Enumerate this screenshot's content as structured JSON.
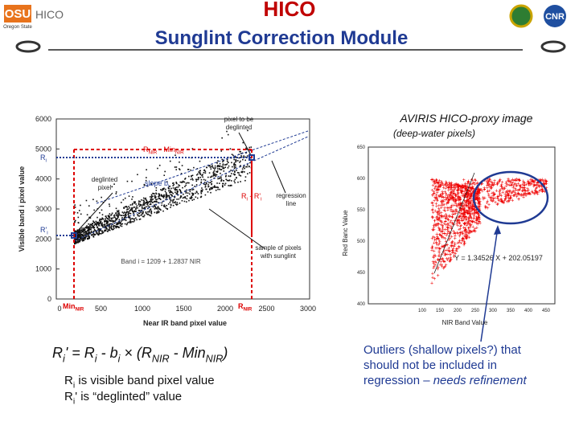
{
  "header": {
    "logo_left": "OSU",
    "logo_left_sub": "Oregon State",
    "logo_text": "HICO",
    "title": "HICO",
    "subtitle": "Sunglint Correction Module",
    "logo_right": "CNR"
  },
  "left_plot": {
    "y_label": "Visible band i pixel value",
    "x_label": "Near IR band pixel value",
    "yticks": [
      "0",
      "1000",
      "2000",
      "3000",
      "4000",
      "5000",
      "6000"
    ],
    "xticks": [
      "0",
      "500",
      "1000",
      "1500",
      "2000",
      "2500",
      "3000"
    ],
    "pixel_label": [
      "pixel to be",
      "deglinted"
    ],
    "deglinted_label": [
      "deglinted",
      "pixel"
    ],
    "regression_label": [
      "regression",
      "line"
    ],
    "sample_label": [
      "sample of pixels",
      "with sunglint"
    ],
    "equation": "Band i = 1209 + 1.2837 NIR",
    "rnir_min": [
      {
        "text": "R"
      },
      {
        "text": "NIR",
        "sub": true
      },
      {
        "text": " - Min"
      },
      {
        "text": "NIR",
        "sub": true
      }
    ],
    "ri": [
      {
        "text": "R"
      },
      {
        "text": "i",
        "sub": true
      }
    ],
    "ri_prime": [
      {
        "text": "R'"
      },
      {
        "text": "i",
        "sub": true
      }
    ],
    "slope": [
      {
        "text": "slope b"
      },
      {
        "text": "i",
        "sub": true
      }
    ],
    "ri_diff": [
      {
        "text": "R"
      },
      {
        "text": "i",
        "sub": true
      },
      {
        "text": " - R'"
      },
      {
        "text": "i",
        "sub": true
      }
    ],
    "min_nir": [
      {
        "text": "Min"
      },
      {
        "text": "NIR",
        "sub": true
      }
    ],
    "r_nir": [
      {
        "text": "R"
      },
      {
        "text": "NIR",
        "sub": true
      }
    ]
  },
  "right_plot": {
    "title": "AVIRIS HICO-proxy image",
    "subtitle": "(deep-water pixels)",
    "y_label": "Red Banc Value",
    "x_label": "NIR Band Value",
    "yticks": [
      "400",
      "450",
      "500",
      "550",
      "600",
      "650"
    ],
    "xticks": [
      "100",
      "150",
      "200",
      "250",
      "300",
      "350",
      "400",
      "450"
    ],
    "equation": "Y = 1.34526 X + 202.05197"
  },
  "formula": [
    {
      "text": "R"
    },
    {
      "text": "i",
      "sub": true
    },
    {
      "text": "' = R"
    },
    {
      "text": "i",
      "sub": true
    },
    {
      "text": " - b"
    },
    {
      "text": "i",
      "sub": true
    },
    {
      "text": " × (R"
    },
    {
      "text": "NIR",
      "sub": true
    },
    {
      "text": " - Min"
    },
    {
      "text": "NIR",
      "sub": true
    },
    {
      "text": ")"
    }
  ],
  "notes": [
    [
      {
        "text": "R"
      },
      {
        "text": "i",
        "sub": true
      },
      {
        "text": " is visible band pixel value"
      }
    ],
    [
      {
        "text": "R"
      },
      {
        "text": "i",
        "sub": true
      },
      {
        "text": "' is “deglinted” value"
      }
    ]
  ],
  "outliers": {
    "text": "Outliers (shallow pixels?) that",
    "text2": "should not be included in",
    "text3": "regression – ",
    "emph": "needs refinement"
  }
}
